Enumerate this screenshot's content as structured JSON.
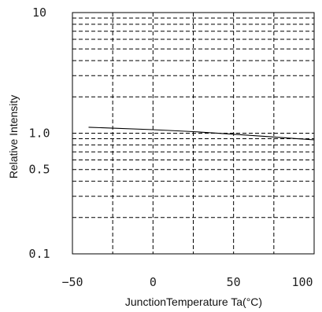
{
  "chart_data": {
    "type": "line",
    "title": "",
    "xlabel": "JunctionTemperature Ta(°C)",
    "ylabel": "Relative Intensity",
    "xlim": [
      -50,
      100
    ],
    "ylim": [
      0.1,
      10
    ],
    "y_scale": "log",
    "grid": true,
    "grid_style": "dashed",
    "x_ticks": [
      -50,
      0,
      50,
      100
    ],
    "x_tick_labels": [
      "−50",
      "0",
      "50",
      "100"
    ],
    "y_ticks": [
      0.1,
      0.5,
      1.0,
      10
    ],
    "y_tick_labels": [
      "0.1",
      "0.5",
      "1.0",
      "10"
    ],
    "series": [
      {
        "name": "",
        "x": [
          -40,
          -25,
          0,
          25,
          50,
          75,
          100
        ],
        "y": [
          1.12,
          1.1,
          1.07,
          1.03,
          0.98,
          0.93,
          0.88
        ]
      }
    ]
  }
}
